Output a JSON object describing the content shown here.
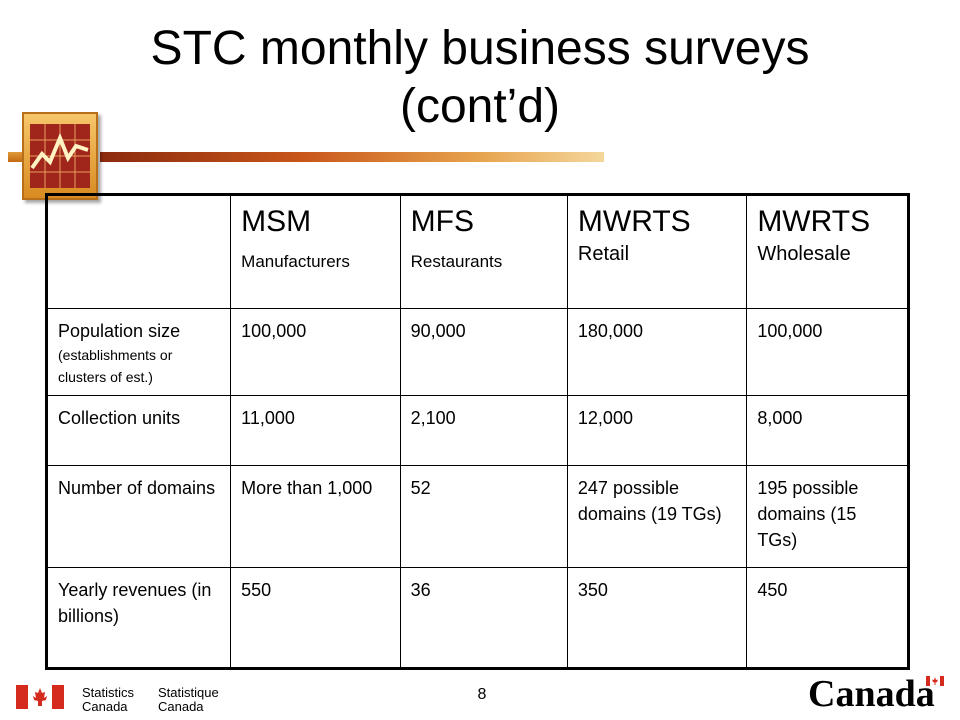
{
  "slide": {
    "title_line1": "STC monthly business surveys",
    "title_line2": "(cont’d)",
    "page_number": "8"
  },
  "table": {
    "columns": [
      {
        "name": "",
        "sub": ""
      },
      {
        "name": "MSM",
        "sub": "Manufacturers"
      },
      {
        "name": "MFS",
        "sub": "Restaurants"
      },
      {
        "name": "MWRTS",
        "sub": "Retail"
      },
      {
        "name": "MWRTS",
        "sub": "Wholesale"
      }
    ],
    "rows": [
      {
        "label": "Population size",
        "note": "(establishments or clusters of est.)",
        "values": [
          "100,000",
          "90,000",
          "180,000",
          "100,000"
        ]
      },
      {
        "label": "Collection units",
        "note": "",
        "values": [
          "11,000",
          "2,100",
          "12,000",
          "8,000"
        ]
      },
      {
        "label": "Number of domains",
        "note": "",
        "values": [
          "More than 1,000",
          "52",
          "247 possible domains (19 TGs)",
          "195 possible domains (15 TGs)"
        ]
      },
      {
        "label": "Yearly revenues (in billions)",
        "note": "",
        "values": [
          "550",
          "36",
          "350",
          "450"
        ]
      }
    ]
  },
  "footer": {
    "stc_en_line1": "Statistics",
    "stc_en_line2": "Canada",
    "stc_fr_line1": "Statistique",
    "stc_fr_line2": "Canada",
    "wordmark": "Canada"
  },
  "colors": {
    "flag_red": "#d52b1e",
    "accent_orange": "#d88b20",
    "accent_brown": "#8b2a0e"
  }
}
